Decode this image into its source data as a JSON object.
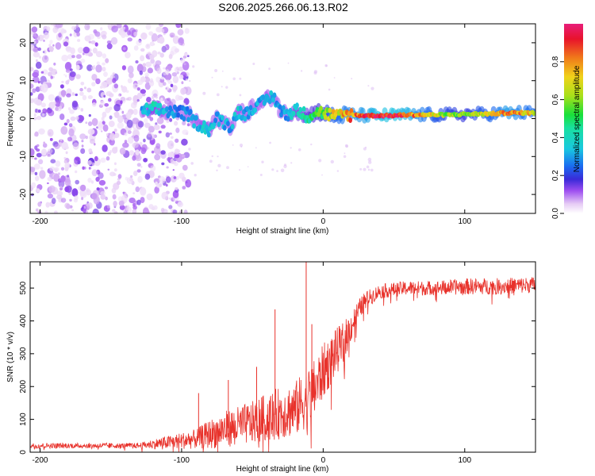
{
  "title": "S206.2025.266.06.13.R02",
  "colors": {
    "snr_line": "#e8322b",
    "band_palette": [
      "#e6ccf5",
      "#c9a0f0",
      "#9d4ef0",
      "#6a1ad6",
      "#3a2ad8",
      "#1a6cf0",
      "#19c8e0",
      "#19e07a",
      "#a8e01a",
      "#f0d21a",
      "#f07a1a",
      "#e8132b"
    ]
  },
  "chart_data": [
    {
      "type": "heatmap",
      "title": "",
      "xlabel": "Height of straight line (km)",
      "ylabel": "Frequency (Hz)",
      "xlim": [
        -207,
        150
      ],
      "ylim": [
        -25,
        25
      ],
      "xticks": [
        -200,
        -100,
        0,
        100
      ],
      "yticks": [
        -20,
        -10,
        0,
        10,
        20
      ],
      "colorbar": {
        "label": "Normalized spectral amplitude",
        "range": [
          0.0,
          1.0
        ],
        "ticks": [
          "0.0",
          "0.2",
          "0.4",
          "0.6",
          "0.8"
        ],
        "tick_values": [
          0.0,
          0.2,
          0.4,
          0.6,
          0.8
        ]
      },
      "ridge": {
        "x": [
          -128,
          -120,
          -110,
          -100,
          -95,
          -90,
          -85,
          -80,
          -75,
          -70,
          -65,
          -60,
          -55,
          -50,
          -45,
          -40,
          -35,
          -30,
          -25,
          -20,
          -15,
          -10,
          -5,
          0,
          5,
          10,
          15,
          20,
          30,
          40,
          50,
          60,
          70,
          80,
          90,
          100,
          110,
          120,
          130,
          140,
          150
        ],
        "freq": [
          2,
          2.5,
          2,
          1.5,
          1,
          -1,
          -2,
          -3,
          0,
          -1,
          -2,
          2,
          1,
          3,
          3.5,
          5,
          6,
          2,
          1,
          2.5,
          1.5,
          0.5,
          2,
          1.5,
          1,
          0.5,
          1,
          1,
          0.8,
          0.8,
          0.8,
          1,
          1,
          1,
          1,
          1.2,
          1.2,
          1.3,
          1.5,
          1.5,
          1.5
        ],
        "amplitude": [
          0.3,
          0.4,
          0.3,
          0.25,
          0.3,
          0.3,
          0.35,
          0.35,
          0.3,
          0.3,
          0.3,
          0.35,
          0.3,
          0.3,
          0.3,
          0.35,
          0.3,
          0.3,
          0.3,
          0.4,
          0.4,
          0.45,
          0.5,
          0.55,
          0.65,
          0.7,
          0.75,
          0.8,
          0.85,
          0.95,
          0.95,
          0.9,
          0.75,
          0.65,
          0.6,
          0.55,
          0.65,
          0.7,
          0.85,
          0.75,
          0.7
        ]
      }
    },
    {
      "type": "line",
      "title": "",
      "xlabel": "Height of straight line (km)",
      "ylabel": "SNR (10 * v/v)",
      "xlim": [
        -207,
        150
      ],
      "ylim": [
        0,
        580
      ],
      "xticks": [
        -200,
        -100,
        0,
        100
      ],
      "yticks": [
        0,
        100,
        200,
        300,
        400,
        500
      ],
      "trend": {
        "x": [
          -207,
          -150,
          -130,
          -120,
          -110,
          -100,
          -90,
          -80,
          -70,
          -60,
          -50,
          -40,
          -30,
          -20,
          -15,
          -10,
          -5,
          0,
          5,
          10,
          15,
          20,
          25,
          30,
          40,
          50,
          60,
          80,
          100,
          120,
          150
        ],
        "y": [
          20,
          20,
          20,
          25,
          30,
          35,
          40,
          55,
          70,
          80,
          90,
          105,
          120,
          130,
          150,
          170,
          200,
          245,
          280,
          310,
          340,
          385,
          430,
          465,
          490,
          495,
          500,
          500,
          505,
          505,
          510
        ],
        "noise": [
          8,
          8,
          8,
          15,
          20,
          25,
          30,
          45,
          55,
          60,
          65,
          75,
          80,
          85,
          90,
          90,
          90,
          85,
          80,
          70,
          60,
          45,
          35,
          25,
          22,
          22,
          22,
          22,
          25,
          25,
          25
        ]
      },
      "spikes": [
        {
          "x": -88,
          "y": 180
        },
        {
          "x": -67,
          "y": 220
        },
        {
          "x": -47,
          "y": 260
        },
        {
          "x": -34,
          "y": 435
        },
        {
          "x": -12,
          "y": 580
        },
        {
          "x": -8,
          "y": 390
        }
      ]
    }
  ]
}
